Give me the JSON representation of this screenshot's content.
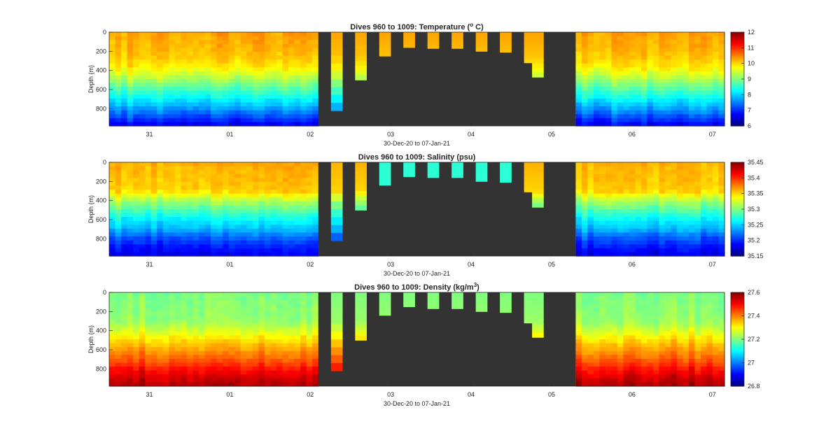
{
  "figure": {
    "colormap": "jet",
    "no_data_color": "#333333"
  },
  "chart_data": [
    {
      "type": "heatmap",
      "variable": "temperature",
      "title": "Dives 960 to 1009: Temperature (",
      "title_super": "o",
      "title_suffix": " C)",
      "xlabel": "30-Dec-20 to 07-Jan-21",
      "ylabel": "Depth (m)",
      "x_ticks": [
        "31",
        "01",
        "02",
        "03",
        "04",
        "05",
        "06",
        "07"
      ],
      "y_ticks": [
        0,
        200,
        400,
        600,
        800
      ],
      "ylim": [
        0,
        980
      ],
      "colorbar_ticks": [
        "12",
        "11",
        "10",
        "9",
        "8",
        "7",
        "6"
      ],
      "clim": [
        6,
        12
      ],
      "profile": [
        [
          0,
          10.3
        ],
        [
          250,
          10.1
        ],
        [
          380,
          9.8
        ],
        [
          500,
          9.2
        ],
        [
          620,
          8.6
        ],
        [
          720,
          8.1
        ],
        [
          800,
          7.7
        ],
        [
          880,
          7.2
        ],
        [
          980,
          6.6
        ]
      ],
      "bottom_dives": [
        {
          "x": 2.33,
          "depth": 820
        },
        {
          "x": 2.63,
          "depth": 500
        }
      ],
      "top_dives": [
        {
          "x": 4.83,
          "depth": 470
        }
      ],
      "shallow_dives": [
        {
          "x": 2.93,
          "depth": 250
        },
        {
          "x": 3.23,
          "depth": 160
        },
        {
          "x": 3.53,
          "depth": 170
        },
        {
          "x": 3.83,
          "depth": 170
        },
        {
          "x": 4.13,
          "depth": 200
        },
        {
          "x": 4.43,
          "depth": 210
        },
        {
          "x": 4.73,
          "depth": 320
        }
      ]
    },
    {
      "type": "heatmap",
      "variable": "salinity",
      "title": "Dives 960 to 1009: Salinity (psu)",
      "title_super": "",
      "title_suffix": "",
      "xlabel": "30-Dec-20 to 07-Jan-21",
      "ylabel": "Depth (m)",
      "x_ticks": [
        "31",
        "01",
        "02",
        "03",
        "04",
        "05",
        "06",
        "07"
      ],
      "y_ticks": [
        0,
        200,
        400,
        600,
        800
      ],
      "ylim": [
        0,
        980
      ],
      "colorbar_ticks": [
        "35.45",
        "35.4",
        "35.35",
        "35.3",
        "35.25",
        "35.2",
        "35.15"
      ],
      "clim": [
        35.15,
        35.45
      ],
      "profile": [
        [
          0,
          35.36
        ],
        [
          300,
          35.35
        ],
        [
          380,
          35.32
        ],
        [
          480,
          35.29
        ],
        [
          600,
          35.26
        ],
        [
          700,
          35.24
        ],
        [
          800,
          35.21
        ],
        [
          900,
          35.19
        ],
        [
          980,
          35.18
        ]
      ],
      "bottom_dives": [
        {
          "x": 2.33,
          "depth": 820
        },
        {
          "x": 2.63,
          "depth": 500
        }
      ],
      "top_dives": [
        {
          "x": 4.83,
          "depth": 470
        }
      ],
      "shallow_dives": [
        {
          "x": 2.93,
          "depth": 240
        },
        {
          "x": 3.23,
          "depth": 150
        },
        {
          "x": 3.53,
          "depth": 160
        },
        {
          "x": 3.83,
          "depth": 160
        },
        {
          "x": 4.13,
          "depth": 200
        },
        {
          "x": 4.43,
          "depth": 210
        },
        {
          "x": 4.73,
          "depth": 310
        }
      ],
      "shallow_surface_value": 35.275
    },
    {
      "type": "heatmap",
      "variable": "density",
      "title": "Dives 960 to 1009: Density (kg/m",
      "title_super": "3",
      "title_suffix": ")",
      "xlabel": "30-Dec-20 to 07-Jan-21",
      "ylabel": "Depth (m)",
      "x_ticks": [
        "31",
        "01",
        "02",
        "03",
        "04",
        "05",
        "06",
        "07"
      ],
      "y_ticks": [
        0,
        200,
        400,
        600,
        800
      ],
      "ylim": [
        0,
        980
      ],
      "colorbar_ticks": [
        "27.6",
        "27.4",
        "27.2",
        "27",
        "26.8"
      ],
      "clim": [
        26.8,
        27.6
      ],
      "profile": [
        [
          0,
          27.2
        ],
        [
          300,
          27.22
        ],
        [
          400,
          27.27
        ],
        [
          500,
          27.33
        ],
        [
          600,
          27.38
        ],
        [
          700,
          27.43
        ],
        [
          800,
          27.49
        ],
        [
          900,
          27.54
        ],
        [
          980,
          27.57
        ]
      ],
      "bottom_dives": [
        {
          "x": 2.33,
          "depth": 820
        },
        {
          "x": 2.63,
          "depth": 500
        }
      ],
      "top_dives": [
        {
          "x": 4.83,
          "depth": 470
        }
      ],
      "shallow_dives": [
        {
          "x": 2.93,
          "depth": 240
        },
        {
          "x": 3.23,
          "depth": 150
        },
        {
          "x": 3.53,
          "depth": 170
        },
        {
          "x": 3.83,
          "depth": 170
        },
        {
          "x": 4.13,
          "depth": 200
        },
        {
          "x": 4.43,
          "depth": 210
        },
        {
          "x": 4.73,
          "depth": 320
        }
      ]
    }
  ]
}
